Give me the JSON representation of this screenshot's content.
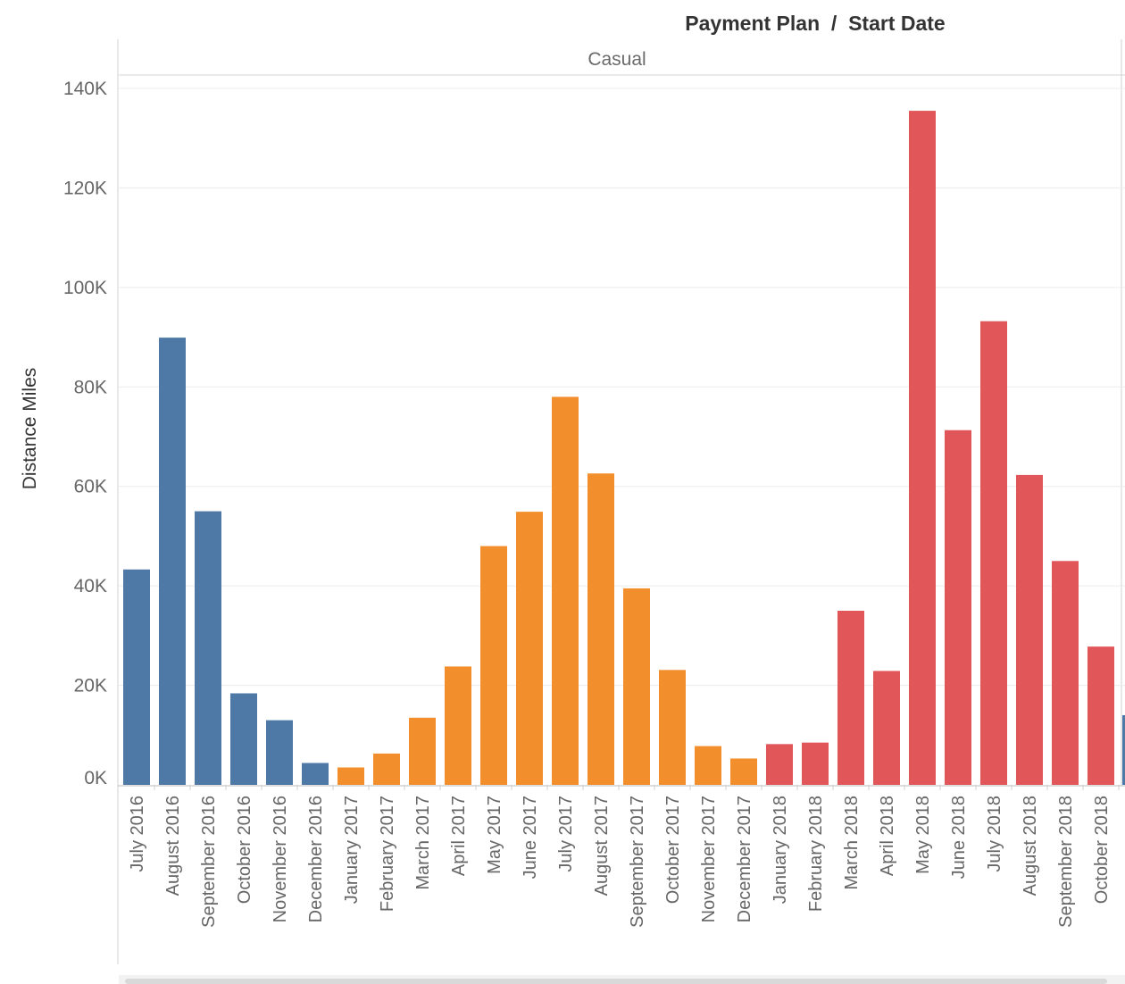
{
  "chart_data": {
    "type": "bar",
    "header": "Payment Plan  /  Start Date",
    "pane_label": "Casual",
    "ylabel": "Distance Miles",
    "xlabel": "",
    "ylim": [
      0,
      140000
    ],
    "y_ticks": [
      "0K",
      "20K",
      "40K",
      "60K",
      "80K",
      "100K",
      "120K",
      "140K"
    ],
    "y_tick_values": [
      0,
      20000,
      40000,
      60000,
      80000,
      100000,
      120000,
      140000
    ],
    "grid": true,
    "categories": [
      "July 2016",
      "August 2016",
      "September 2016",
      "October 2016",
      "November 2016",
      "December 2016",
      "January 2017",
      "February 2017",
      "March 2017",
      "April 2017",
      "May 2017",
      "June 2017",
      "July 2017",
      "August 2017",
      "September 2017",
      "October 2017",
      "November 2017",
      "December 2017",
      "January 2018",
      "February 2018",
      "March 2018",
      "April 2018",
      "May 2018",
      "June 2018",
      "July 2018",
      "August 2018",
      "September 2018",
      "October 2018"
    ],
    "values": [
      43300,
      89900,
      55000,
      18400,
      13000,
      4400,
      3500,
      6300,
      13500,
      23800,
      48000,
      54900,
      78000,
      62600,
      39500,
      23100,
      7800,
      5300,
      8200,
      8500,
      35000,
      22900,
      135500,
      71300,
      93200,
      62300,
      45000,
      27800
    ],
    "bar_colors": [
      "#4e79a7",
      "#4e79a7",
      "#4e79a7",
      "#4e79a7",
      "#4e79a7",
      "#4e79a7",
      "#f28e2b",
      "#f28e2b",
      "#f28e2b",
      "#f28e2b",
      "#f28e2b",
      "#f28e2b",
      "#f28e2b",
      "#f28e2b",
      "#f28e2b",
      "#f28e2b",
      "#f28e2b",
      "#f28e2b",
      "#e15759",
      "#e15759",
      "#e15759",
      "#e15759",
      "#e15759",
      "#e15759",
      "#e15759",
      "#e15759",
      "#e15759",
      "#e15759"
    ],
    "partial_bar_value": 14000,
    "partial_bar_color": "#4e79a7",
    "colors": {
      "2016": "#4e79a7",
      "2017": "#f28e2b",
      "2018": "#e15759"
    }
  }
}
